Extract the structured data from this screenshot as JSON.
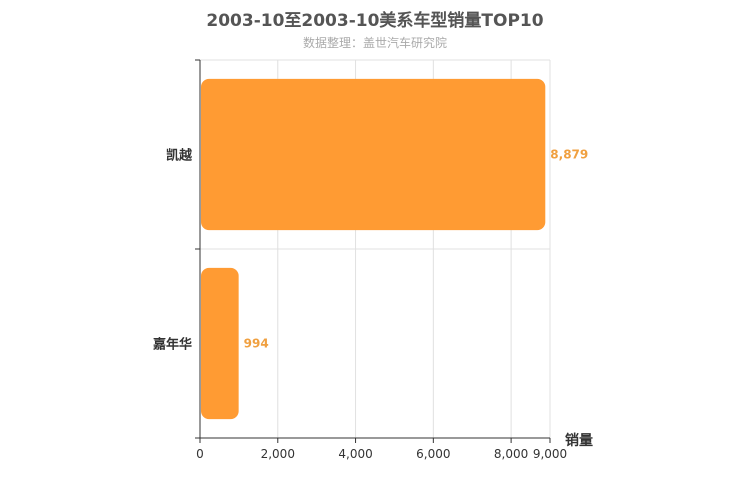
{
  "chart_data": {
    "type": "bar",
    "orientation": "horizontal",
    "title": "2003-10至2003-10美系车型销量TOP10",
    "subtitle": "数据整理：盖世汽车研究院",
    "xlabel": "销量",
    "ylabel": "",
    "categories": [
      "凯越",
      "嘉年华"
    ],
    "values": [
      8879,
      994
    ],
    "value_labels": [
      "8,879",
      "994"
    ],
    "xlim": [
      0,
      9000
    ],
    "xticks": [
      0,
      2000,
      4000,
      6000,
      8000,
      9000
    ],
    "xtick_labels": [
      "0",
      "2,000",
      "4,000",
      "6,000",
      "8,000",
      "9,000"
    ],
    "grid": true,
    "bar_color": "#ff9b33",
    "label_color": "#f0a040"
  }
}
